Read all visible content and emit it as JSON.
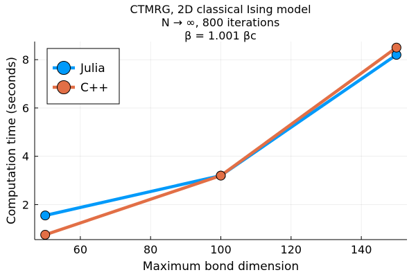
{
  "chart_data": {
    "type": "line",
    "title": [
      "CTMRG, 2D classical Ising model",
      "N → ∞, 800 iterations",
      "β = 1.001 βc"
    ],
    "xlabel": "Maximum bond dimension",
    "ylabel": "Computation time (seconds)",
    "x": [
      50,
      100,
      150
    ],
    "xlim": [
      47,
      153
    ],
    "ylim": [
      0.55,
      8.75
    ],
    "xticks": [
      60,
      80,
      100,
      120,
      140
    ],
    "yticks": [
      2,
      4,
      6,
      8
    ],
    "grid": true,
    "legend_position": "top-left",
    "series": [
      {
        "name": "Julia",
        "values": [
          1.55,
          3.2,
          8.2
        ],
        "color": "#009AFA"
      },
      {
        "name": "C++",
        "values": [
          0.75,
          3.2,
          8.5
        ],
        "color": "#E26F46"
      }
    ]
  }
}
